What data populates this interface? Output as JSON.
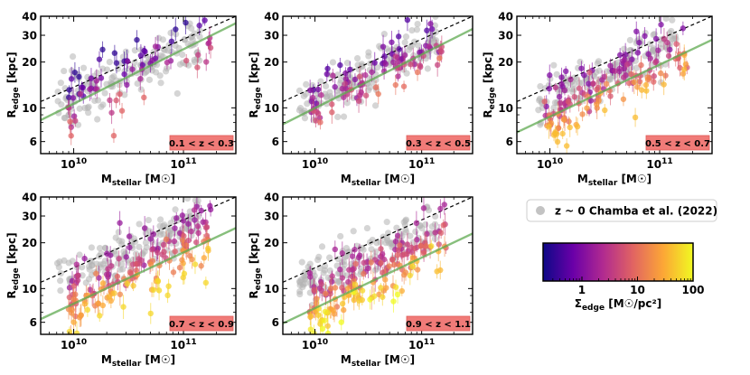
{
  "figure": {
    "legend_label": "z ~ 0 Chamba et al. (2022)",
    "colorbar": {
      "label": "Σ_edge [M☉/pc²]",
      "label_main": "Σ",
      "label_sub": "edge",
      "label_unit": " [M☉/pc²]",
      "ticks": [
        "1",
        "10",
        "100"
      ],
      "tick_values": [
        1,
        10,
        100
      ],
      "range": [
        0.2,
        100
      ],
      "colormap": [
        "#0d0887",
        "#6a00a8",
        "#b12a90",
        "#e16462",
        "#fca636",
        "#f0f921"
      ]
    }
  },
  "chart_data": [
    {
      "type": "scatter",
      "redshift_label": "0.1 < z < 0.3",
      "xlabel_main": "M",
      "xlabel_sub": "stellar",
      "xlabel_unit": " [M☉]",
      "ylabel_main": "R",
      "ylabel_sub": "edge",
      "ylabel_unit": " [kpc]",
      "xlim": [
        5000000000.0,
        300000000000.0
      ],
      "ylim": [
        5,
        40
      ],
      "xscale": "log",
      "yscale": "log",
      "x_ticks": [
        "10^10",
        "10^11"
      ],
      "y_ticks": [
        "6",
        "10",
        "20",
        "30",
        "40"
      ],
      "y_tick_values": [
        6,
        10,
        20,
        30,
        40
      ],
      "dashed_line": {
        "x": [
          5000000000.0,
          300000000000.0
        ],
        "y": [
          11,
          40
        ]
      },
      "green_fit_line": {
        "x": [
          5000000000.0,
          300000000000.0
        ],
        "y": [
          8.3,
          36
        ]
      },
      "n_points": 70,
      "sigma_range": [
        0.3,
        8
      ]
    },
    {
      "type": "scatter",
      "redshift_label": "0.3 < z < 0.5",
      "xlabel_main": "M",
      "xlabel_sub": "stellar",
      "xlabel_unit": " [M☉]",
      "ylabel_main": "R",
      "ylabel_sub": "edge",
      "ylabel_unit": " [kpc]",
      "xlim": [
        5000000000.0,
        300000000000.0
      ],
      "ylim": [
        5,
        40
      ],
      "xscale": "log",
      "yscale": "log",
      "x_ticks": [
        "10^10",
        "10^11"
      ],
      "y_ticks": [
        "6",
        "10",
        "20",
        "30",
        "40"
      ],
      "y_tick_values": [
        6,
        10,
        20,
        30,
        40
      ],
      "dashed_line": {
        "x": [
          5000000000.0,
          300000000000.0
        ],
        "y": [
          11,
          40
        ]
      },
      "green_fit_line": {
        "x": [
          5000000000.0,
          300000000000.0
        ],
        "y": [
          7.8,
          33
        ]
      },
      "n_points": 95,
      "sigma_range": [
        0.5,
        12
      ]
    },
    {
      "type": "scatter",
      "redshift_label": "0.5 < z < 0.7",
      "xlabel_main": "M",
      "xlabel_sub": "stellar",
      "xlabel_unit": " [M☉]",
      "ylabel_main": "R",
      "ylabel_sub": "edge",
      "ylabel_unit": " [kpc]",
      "xlim": [
        5000000000.0,
        300000000000.0
      ],
      "ylim": [
        5,
        40
      ],
      "xscale": "log",
      "yscale": "log",
      "x_ticks": [
        "10^10",
        "10^11"
      ],
      "y_ticks": [
        "6",
        "10",
        "20",
        "30",
        "40"
      ],
      "y_tick_values": [
        6,
        10,
        20,
        30,
        40
      ],
      "dashed_line": {
        "x": [
          5000000000.0,
          300000000000.0
        ],
        "y": [
          11,
          40
        ]
      },
      "green_fit_line": {
        "x": [
          5000000000.0,
          300000000000.0
        ],
        "y": [
          6.9,
          28
        ]
      },
      "n_points": 150,
      "sigma_range": [
        1,
        40
      ]
    },
    {
      "type": "scatter",
      "redshift_label": "0.7 < z < 0.9",
      "xlabel_main": "M",
      "xlabel_sub": "stellar",
      "xlabel_unit": " [M☉]",
      "ylabel_main": "R",
      "ylabel_sub": "edge",
      "ylabel_unit": " [kpc]",
      "xlim": [
        5000000000.0,
        300000000000.0
      ],
      "ylim": [
        5,
        40
      ],
      "xscale": "log",
      "yscale": "log",
      "x_ticks": [
        "10^10",
        "10^11"
      ],
      "y_ticks": [
        "6",
        "10",
        "20",
        "30",
        "40"
      ],
      "y_tick_values": [
        6,
        10,
        20,
        30,
        40
      ],
      "dashed_line": {
        "x": [
          5000000000.0,
          300000000000.0
        ],
        "y": [
          11,
          40
        ]
      },
      "green_fit_line": {
        "x": [
          5000000000.0,
          300000000000.0
        ],
        "y": [
          6.3,
          25
        ]
      },
      "n_points": 170,
      "sigma_range": [
        1.5,
        60
      ]
    },
    {
      "type": "scatter",
      "redshift_label": "0.9 < z < 1.1",
      "xlabel_main": "M",
      "xlabel_sub": "stellar",
      "xlabel_unit": " [M☉]",
      "ylabel_main": "R",
      "ylabel_sub": "edge",
      "ylabel_unit": " [kpc]",
      "xlim": [
        5000000000.0,
        300000000000.0
      ],
      "ylim": [
        5,
        40
      ],
      "xscale": "log",
      "yscale": "log",
      "x_ticks": [
        "10^10",
        "10^11"
      ],
      "y_ticks": [
        "6",
        "10",
        "20",
        "30",
        "40"
      ],
      "y_tick_values": [
        6,
        10,
        20,
        30,
        40
      ],
      "dashed_line": {
        "x": [
          5000000000.0,
          300000000000.0
        ],
        "y": [
          11,
          40
        ]
      },
      "green_fit_line": {
        "x": [
          5000000000.0,
          300000000000.0
        ],
        "y": [
          5.9,
          23
        ]
      },
      "n_points": 180,
      "sigma_range": [
        2,
        100
      ]
    }
  ]
}
